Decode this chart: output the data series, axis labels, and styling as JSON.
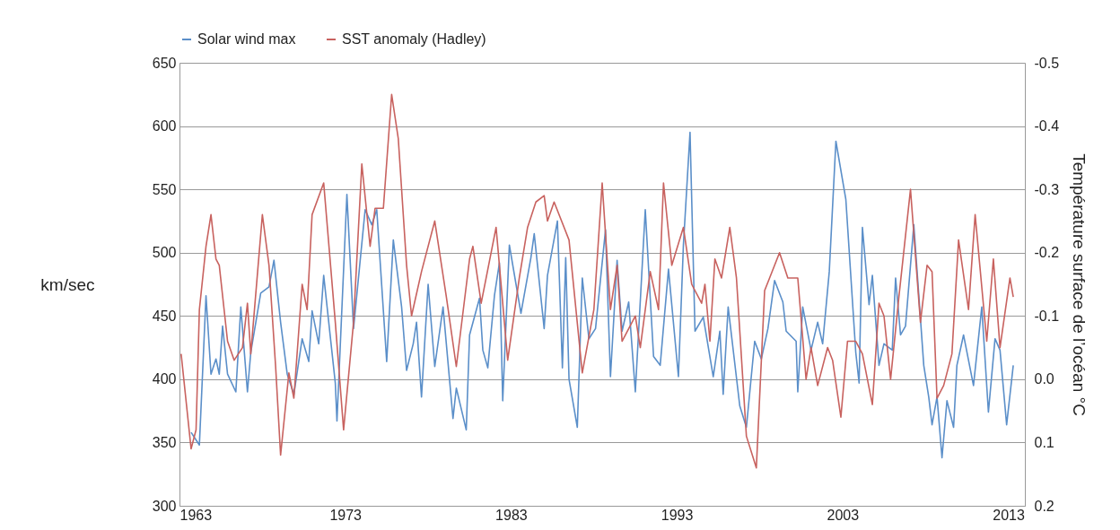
{
  "chart_data": {
    "type": "line",
    "xlim": [
      1963,
      2014
    ],
    "xticks": [
      1963,
      1973,
      1983,
      1993,
      2003,
      2013
    ],
    "ylim": [
      300,
      650
    ],
    "yticks": [
      300,
      350,
      400,
      450,
      500,
      550,
      600,
      650
    ],
    "y2lim": [
      0.2,
      -0.5
    ],
    "y2ticks": [
      -0.5,
      -0.4,
      -0.3,
      -0.2,
      -0.1,
      {
        "value": 0,
        "label": "0.0"
      },
      0.1,
      0.2
    ],
    "ylabel": "km/sec",
    "y2label": "Température surface de l’océan °C",
    "grid": "y",
    "legend": "top",
    "marker": "none",
    "line_style": "solid",
    "series": [
      {
        "name": "Solar wind max",
        "color": "#5b8fc9",
        "x": [
          1963.7,
          1964.2,
          1964.6,
          1964.9,
          1965.2,
          1965.4,
          1965.6,
          1965.9,
          1966.4,
          1966.7,
          1967.1,
          1967.3,
          1967.9,
          1968.4,
          1968.7,
          1969.1,
          1969.5,
          1969.9,
          1970.4,
          1970.8,
          1971.0,
          1971.4,
          1971.7,
          1972.4,
          1972.5,
          1973.1,
          1973.5,
          1974.2,
          1974.6,
          1974.9,
          1975.5,
          1975.9,
          1976.4,
          1976.7,
          1977.1,
          1977.3,
          1977.6,
          1978.0,
          1978.4,
          1978.9,
          1979.5,
          1979.7,
          1980.3,
          1980.5,
          1981.1,
          1981.3,
          1981.6,
          1982.0,
          1982.3,
          1982.5,
          1982.9,
          1983.6,
          1984.2,
          1984.4,
          1985.0,
          1985.2,
          1985.8,
          1986.1,
          1986.3,
          1986.5,
          1987.0,
          1987.3,
          1987.7,
          1988.1,
          1988.7,
          1989.0,
          1989.4,
          1989.7,
          1990.1,
          1990.5,
          1991.1,
          1991.4,
          1991.6,
          1992.0,
          1992.5,
          1993.1,
          1993.4,
          1993.8,
          1994.1,
          1994.6,
          1995.2,
          1995.6,
          1995.8,
          1996.1,
          1996.8,
          1997.2,
          1997.7,
          1998.1,
          1998.5,
          1998.9,
          1999.4,
          1999.6,
          2000.2,
          2000.3,
          2000.6,
          2001.1,
          2001.5,
          2001.8,
          2002.2,
          2002.6,
          2003.2,
          2003.8,
          2004.0,
          2004.2,
          2004.6,
          2004.8,
          2005.2,
          2005.5,
          2006.0,
          2006.2,
          2006.5,
          2006.8,
          2007.3,
          2007.9,
          2008.2,
          2008.4,
          2008.7,
          2009.0,
          2009.3,
          2009.7,
          2009.9,
          2010.3,
          2010.9,
          2011.4,
          2011.8,
          2012.2,
          2012.5,
          2012.9,
          2013.3
        ],
        "values": [
          358,
          348,
          466,
          404,
          416,
          404,
          442,
          404,
          390,
          457,
          390,
          421,
          468,
          473,
          494,
          445,
          404,
          388,
          432,
          414,
          454,
          428,
          482,
          397,
          367,
          546,
          440,
          534,
          522,
          534,
          414,
          510,
          457,
          407,
          428,
          445,
          386,
          475,
          410,
          457,
          369,
          393,
          360,
          435,
          464,
          423,
          409,
          466,
          492,
          383,
          506,
          452,
          496,
          515,
          440,
          482,
          525,
          409,
          496,
          400,
          362,
          480,
          432,
          440,
          518,
          402,
          494,
          438,
          461,
          390,
          534,
          464,
          418,
          411,
          487,
          402,
          506,
          595,
          438,
          449,
          402,
          438,
          388,
          457,
          379,
          362,
          430,
          416,
          440,
          478,
          461,
          438,
          430,
          390,
          457,
          423,
          445,
          428,
          485,
          588,
          542,
          421,
          397,
          520,
          459,
          482,
          411,
          428,
          423,
          480,
          435,
          442,
          522,
          411,
          386,
          364,
          386,
          338,
          383,
          362,
          411,
          435,
          395,
          457,
          374,
          432,
          423,
          364,
          411
        ]
      },
      {
        "name": "SST anomaly (Hadley)",
        "color": "#c8625f",
        "axis": "y2",
        "x": [
          1963.1,
          1963.7,
          1964.0,
          1964.2,
          1964.6,
          1964.9,
          1965.2,
          1965.4,
          1965.9,
          1966.3,
          1966.8,
          1967.1,
          1967.3,
          1968.0,
          1968.4,
          1968.8,
          1969.1,
          1969.6,
          1969.9,
          1970.4,
          1970.7,
          1971.0,
          1971.7,
          1972.4,
          1972.9,
          1973.5,
          1974.0,
          1974.5,
          1974.8,
          1975.3,
          1975.8,
          1976.2,
          1976.7,
          1977.0,
          1977.6,
          1978.4,
          1979.1,
          1979.7,
          1980.5,
          1980.7,
          1981.2,
          1982.1,
          1982.6,
          1982.8,
          1983.5,
          1984.0,
          1984.5,
          1985.0,
          1985.2,
          1985.6,
          1986.5,
          1987.3,
          1988.0,
          1988.5,
          1989.0,
          1989.4,
          1989.7,
          1990.5,
          1990.8,
          1991.4,
          1991.9,
          1992.2,
          1992.7,
          1993.4,
          1993.9,
          1994.5,
          1994.7,
          1995.0,
          1995.3,
          1995.7,
          1996.2,
          1996.6,
          1997.2,
          1997.8,
          1998.3,
          1998.6,
          1999.2,
          1999.7,
          2000.3,
          2000.8,
          2001.1,
          2001.5,
          2002.1,
          2002.4,
          2002.9,
          2003.3,
          2003.8,
          2004.2,
          2004.8,
          2005.2,
          2005.5,
          2005.9,
          2006.4,
          2007.1,
          2007.7,
          2008.1,
          2008.4,
          2008.7,
          2009.1,
          2009.6,
          2010.0,
          2010.6,
          2011.0,
          2011.7,
          2012.1,
          2012.5,
          2013.1,
          2013.3
        ],
        "values": [
          -0.04,
          0.11,
          0.08,
          -0.11,
          -0.21,
          -0.26,
          -0.19,
          -0.18,
          -0.06,
          -0.03,
          -0.05,
          -0.12,
          -0.04,
          -0.26,
          -0.18,
          -0.02,
          0.12,
          -0.01,
          0.03,
          -0.15,
          -0.11,
          -0.26,
          -0.31,
          -0.09,
          0.08,
          -0.09,
          -0.34,
          -0.21,
          -0.27,
          -0.27,
          -0.45,
          -0.38,
          -0.18,
          -0.1,
          -0.17,
          -0.25,
          -0.13,
          -0.02,
          -0.19,
          -0.21,
          -0.12,
          -0.24,
          -0.09,
          -0.03,
          -0.16,
          -0.24,
          -0.28,
          -0.29,
          -0.25,
          -0.28,
          -0.22,
          -0.01,
          -0.11,
          -0.31,
          -0.11,
          -0.18,
          -0.06,
          -0.1,
          -0.05,
          -0.17,
          -0.11,
          -0.31,
          -0.18,
          -0.24,
          -0.15,
          -0.12,
          -0.15,
          -0.06,
          -0.19,
          -0.16,
          -0.24,
          -0.16,
          0.09,
          0.14,
          -0.14,
          -0.16,
          -0.2,
          -0.16,
          -0.16,
          0.0,
          -0.05,
          0.01,
          -0.05,
          -0.03,
          0.06,
          -0.06,
          -0.06,
          -0.04,
          0.04,
          -0.12,
          -0.1,
          0.0,
          -0.13,
          -0.3,
          -0.09,
          -0.18,
          -0.17,
          0.03,
          0.01,
          -0.04,
          -0.22,
          -0.11,
          -0.26,
          -0.06,
          -0.19,
          -0.05,
          -0.16,
          -0.13
        ]
      }
    ]
  }
}
